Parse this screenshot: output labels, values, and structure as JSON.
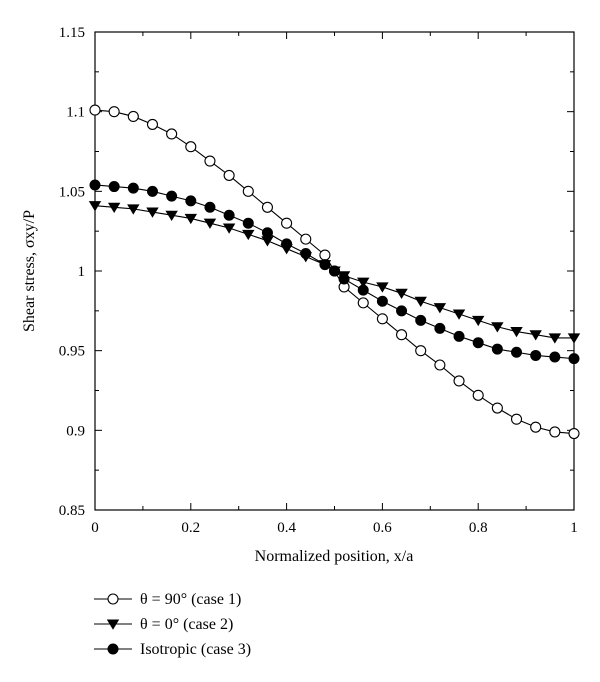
{
  "chart_data": {
    "type": "line",
    "title": "",
    "xlabel": "Normalized position, x/a",
    "ylabel": "Shear stress, σxy/P",
    "xlim": [
      0,
      1
    ],
    "ylim": [
      0.85,
      1.15
    ],
    "xticks": [
      "0",
      "0.2",
      "0.4",
      "0.6",
      "0.8",
      "1"
    ],
    "yticks": [
      "0.85",
      "0.9",
      "0.95",
      "1",
      "1.05",
      "1.1",
      "1.15"
    ],
    "grid": false,
    "legend_position": "bottom-left",
    "series": [
      {
        "name": "θ = 90° (case 1)",
        "marker": "open-circle",
        "x": [
          0,
          0.04,
          0.08,
          0.12,
          0.16,
          0.2,
          0.24,
          0.28,
          0.32,
          0.36,
          0.4,
          0.44,
          0.48,
          0.5,
          0.52,
          0.56,
          0.6,
          0.64,
          0.68,
          0.72,
          0.76,
          0.8,
          0.84,
          0.88,
          0.92,
          0.96,
          1.0
        ],
        "y": [
          1.101,
          1.1,
          1.097,
          1.092,
          1.086,
          1.078,
          1.069,
          1.06,
          1.05,
          1.04,
          1.03,
          1.02,
          1.01,
          1.0,
          0.99,
          0.98,
          0.97,
          0.96,
          0.95,
          0.941,
          0.931,
          0.922,
          0.914,
          0.907,
          0.902,
          0.899,
          0.898
        ]
      },
      {
        "name": "θ = 0° (case 2)",
        "marker": "filled-triangle-down",
        "x": [
          0,
          0.04,
          0.08,
          0.12,
          0.16,
          0.2,
          0.24,
          0.28,
          0.32,
          0.36,
          0.4,
          0.44,
          0.48,
          0.5,
          0.52,
          0.56,
          0.6,
          0.64,
          0.68,
          0.72,
          0.76,
          0.8,
          0.84,
          0.88,
          0.92,
          0.96,
          1.0
        ],
        "y": [
          1.041,
          1.04,
          1.039,
          1.037,
          1.035,
          1.033,
          1.03,
          1.027,
          1.023,
          1.019,
          1.014,
          1.009,
          1.004,
          1.0,
          0.997,
          0.993,
          0.99,
          0.986,
          0.981,
          0.977,
          0.973,
          0.969,
          0.965,
          0.962,
          0.96,
          0.958,
          0.958
        ]
      },
      {
        "name": "Isotropic (case 3)",
        "marker": "filled-circle",
        "x": [
          0,
          0.04,
          0.08,
          0.12,
          0.16,
          0.2,
          0.24,
          0.28,
          0.32,
          0.36,
          0.4,
          0.44,
          0.48,
          0.5,
          0.52,
          0.56,
          0.6,
          0.64,
          0.68,
          0.72,
          0.76,
          0.8,
          0.84,
          0.88,
          0.92,
          0.96,
          1.0
        ],
        "y": [
          1.054,
          1.053,
          1.052,
          1.05,
          1.047,
          1.044,
          1.04,
          1.035,
          1.03,
          1.024,
          1.017,
          1.011,
          1.004,
          1.0,
          0.995,
          0.988,
          0.981,
          0.975,
          0.969,
          0.964,
          0.959,
          0.955,
          0.951,
          0.949,
          0.947,
          0.946,
          0.945
        ]
      }
    ]
  }
}
